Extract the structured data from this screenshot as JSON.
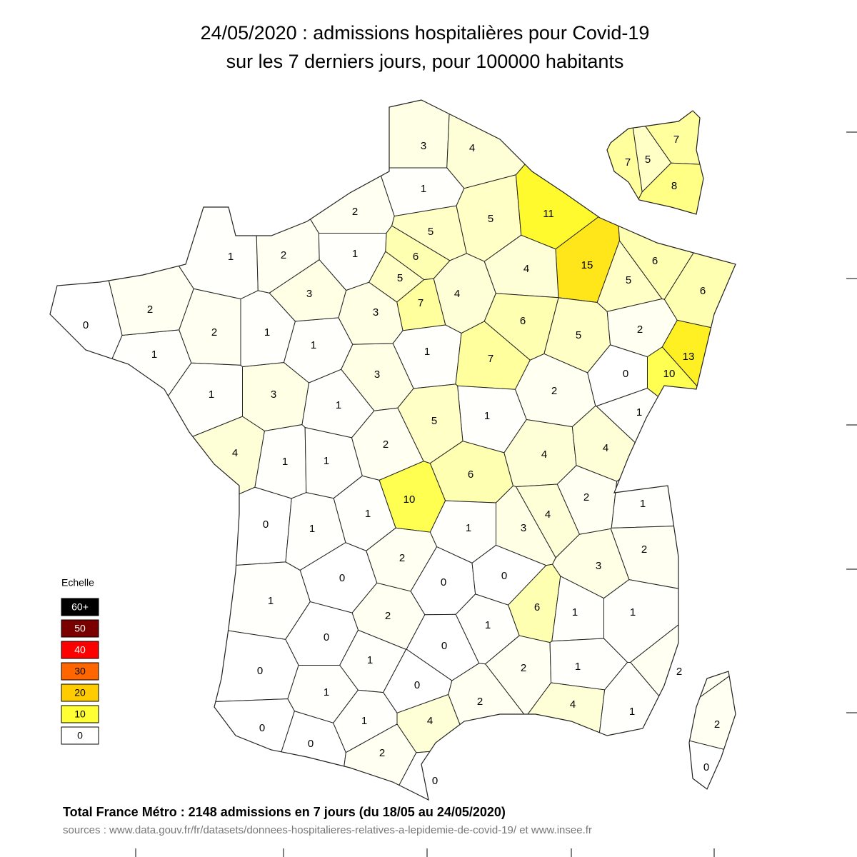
{
  "chart_data": {
    "type": "map",
    "title": [
      "24/05/2020 : admissions hospitalières pour Covid-19",
      "sur les 7 derniers jours, pour 100000 habitants"
    ],
    "regions": {
      "values": [
        3,
        4,
        1,
        2,
        5,
        5,
        11,
        15,
        6,
        5,
        7,
        4,
        3,
        4,
        6,
        5,
        5,
        6,
        6,
        2,
        13,
        10,
        0,
        1,
        7,
        2,
        1,
        1,
        5,
        3,
        1,
        3,
        1,
        1,
        2,
        0,
        2,
        1,
        1,
        3,
        1,
        2,
        1,
        4,
        1,
        1,
        2,
        6,
        4,
        4,
        2,
        1,
        10,
        1,
        0,
        1,
        1,
        3,
        4,
        2,
        3,
        2,
        0,
        0,
        0,
        1,
        2,
        6,
        1,
        1,
        1,
        0,
        0,
        0,
        1,
        0,
        2,
        1,
        2,
        1,
        2,
        4,
        1,
        0,
        0,
        1,
        4,
        2,
        0,
        2,
        0
      ]
    },
    "inset": {
      "values": [
        7,
        5,
        7,
        8
      ]
    },
    "legend": {
      "title": "Echelle",
      "items": [
        {
          "value": 60,
          "label": "60+",
          "color": "#000000"
        },
        {
          "value": 50,
          "color": "#7a0000"
        },
        {
          "value": 40,
          "color": "#ff0000"
        },
        {
          "value": 30,
          "color": "#ff6600"
        },
        {
          "value": 20,
          "color": "#ffcc00"
        },
        {
          "value": 10,
          "color": "#ffff33"
        },
        {
          "value": 0,
          "color": "#ffffff"
        }
      ]
    },
    "footer": "Total France Métro : 2148 admissions en 7 jours (du 18/05 au 24/05/2020)",
    "sources": "sources : www.data.gouv.fr/fr/datasets/donnees-hospitalieres-relatives-a-lepidemie-de-covid-19/  et  www.insee.fr"
  }
}
